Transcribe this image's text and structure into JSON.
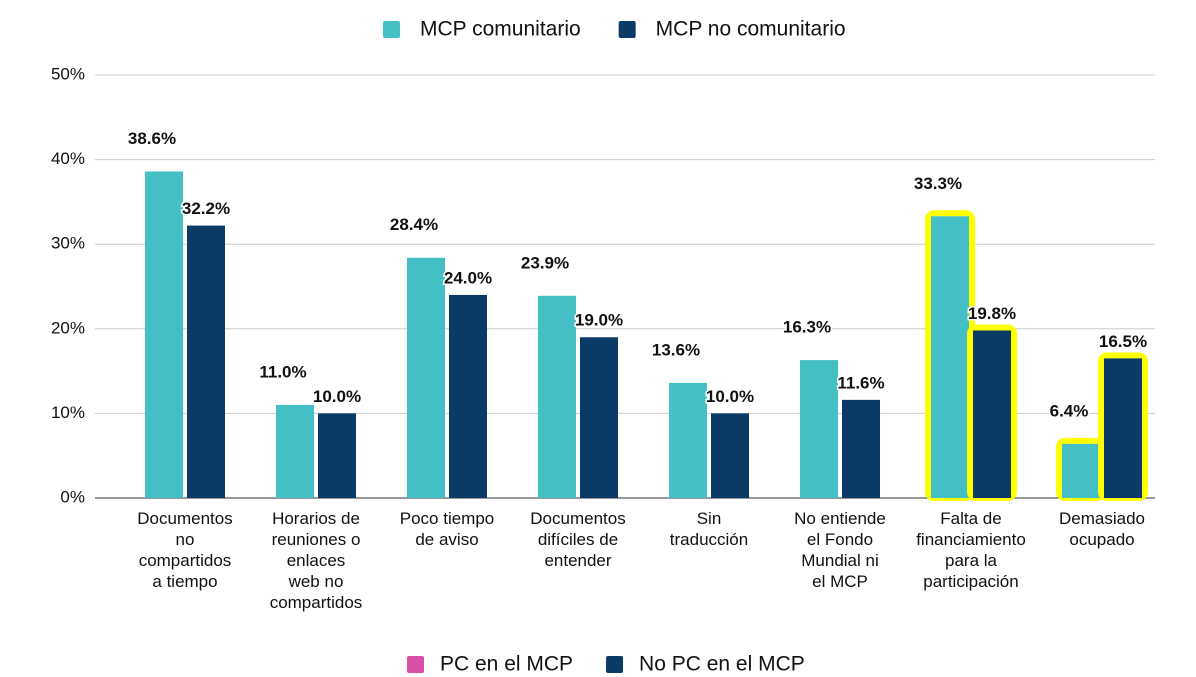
{
  "chart_data": {
    "type": "bar",
    "categories": [
      "Documentos\nno\ncompartidos\na tiempo",
      "Horarios de\nreuniones o\nenlaces\nweb no\ncompartidos",
      "Poco tiempo\nde aviso",
      "Documentos\ndifíciles de\nentender",
      "Sin\ntraducción",
      "No entiende\nel Fondo\nMundial ni\nel MCP",
      "Falta de\nfinanciamiento\npara la\nparticipación",
      "Demasiado\nocupado"
    ],
    "series": [
      {
        "name": "MCP comunitario",
        "color": "#45bfc6",
        "values": [
          38.6,
          11.0,
          28.4,
          23.9,
          13.6,
          16.3,
          33.3,
          6.4
        ],
        "value_labels": [
          "38.6%",
          "11.0%",
          "28.4%",
          "23.9%",
          "13.6%",
          "16.3%",
          "33.3%",
          "6.4%"
        ]
      },
      {
        "name": "MCP no comunitario",
        "color": "#0b3a66",
        "values": [
          32.2,
          10.0,
          24.0,
          19.0,
          10.0,
          11.6,
          19.8,
          16.5
        ],
        "value_labels": [
          "32.2%",
          "10.0%",
          "24.0%",
          "19.0%",
          "10.0%",
          "11.6%",
          "19.8%",
          "16.5%"
        ]
      }
    ],
    "ylim": [
      0,
      50
    ],
    "yticks": [
      {
        "value": 0,
        "label": "0%"
      },
      {
        "value": 10,
        "label": "10%"
      },
      {
        "value": 20,
        "label": "20%"
      },
      {
        "value": 30,
        "label": "30%"
      },
      {
        "value": 40,
        "label": "40%"
      },
      {
        "value": 50,
        "label": "50%"
      }
    ],
    "grid": true,
    "legend": "top",
    "highlight_color": "#ffff00",
    "highlighted": [
      "Falta de\nfinanciamiento\npara la\nparticipación",
      "Demasiado\nocupado"
    ],
    "legend2": [
      {
        "name": "PC en el MCP",
        "color": "#d94fa6"
      },
      {
        "name": "No PC en el MCP",
        "color": "#0b3a66"
      }
    ]
  }
}
